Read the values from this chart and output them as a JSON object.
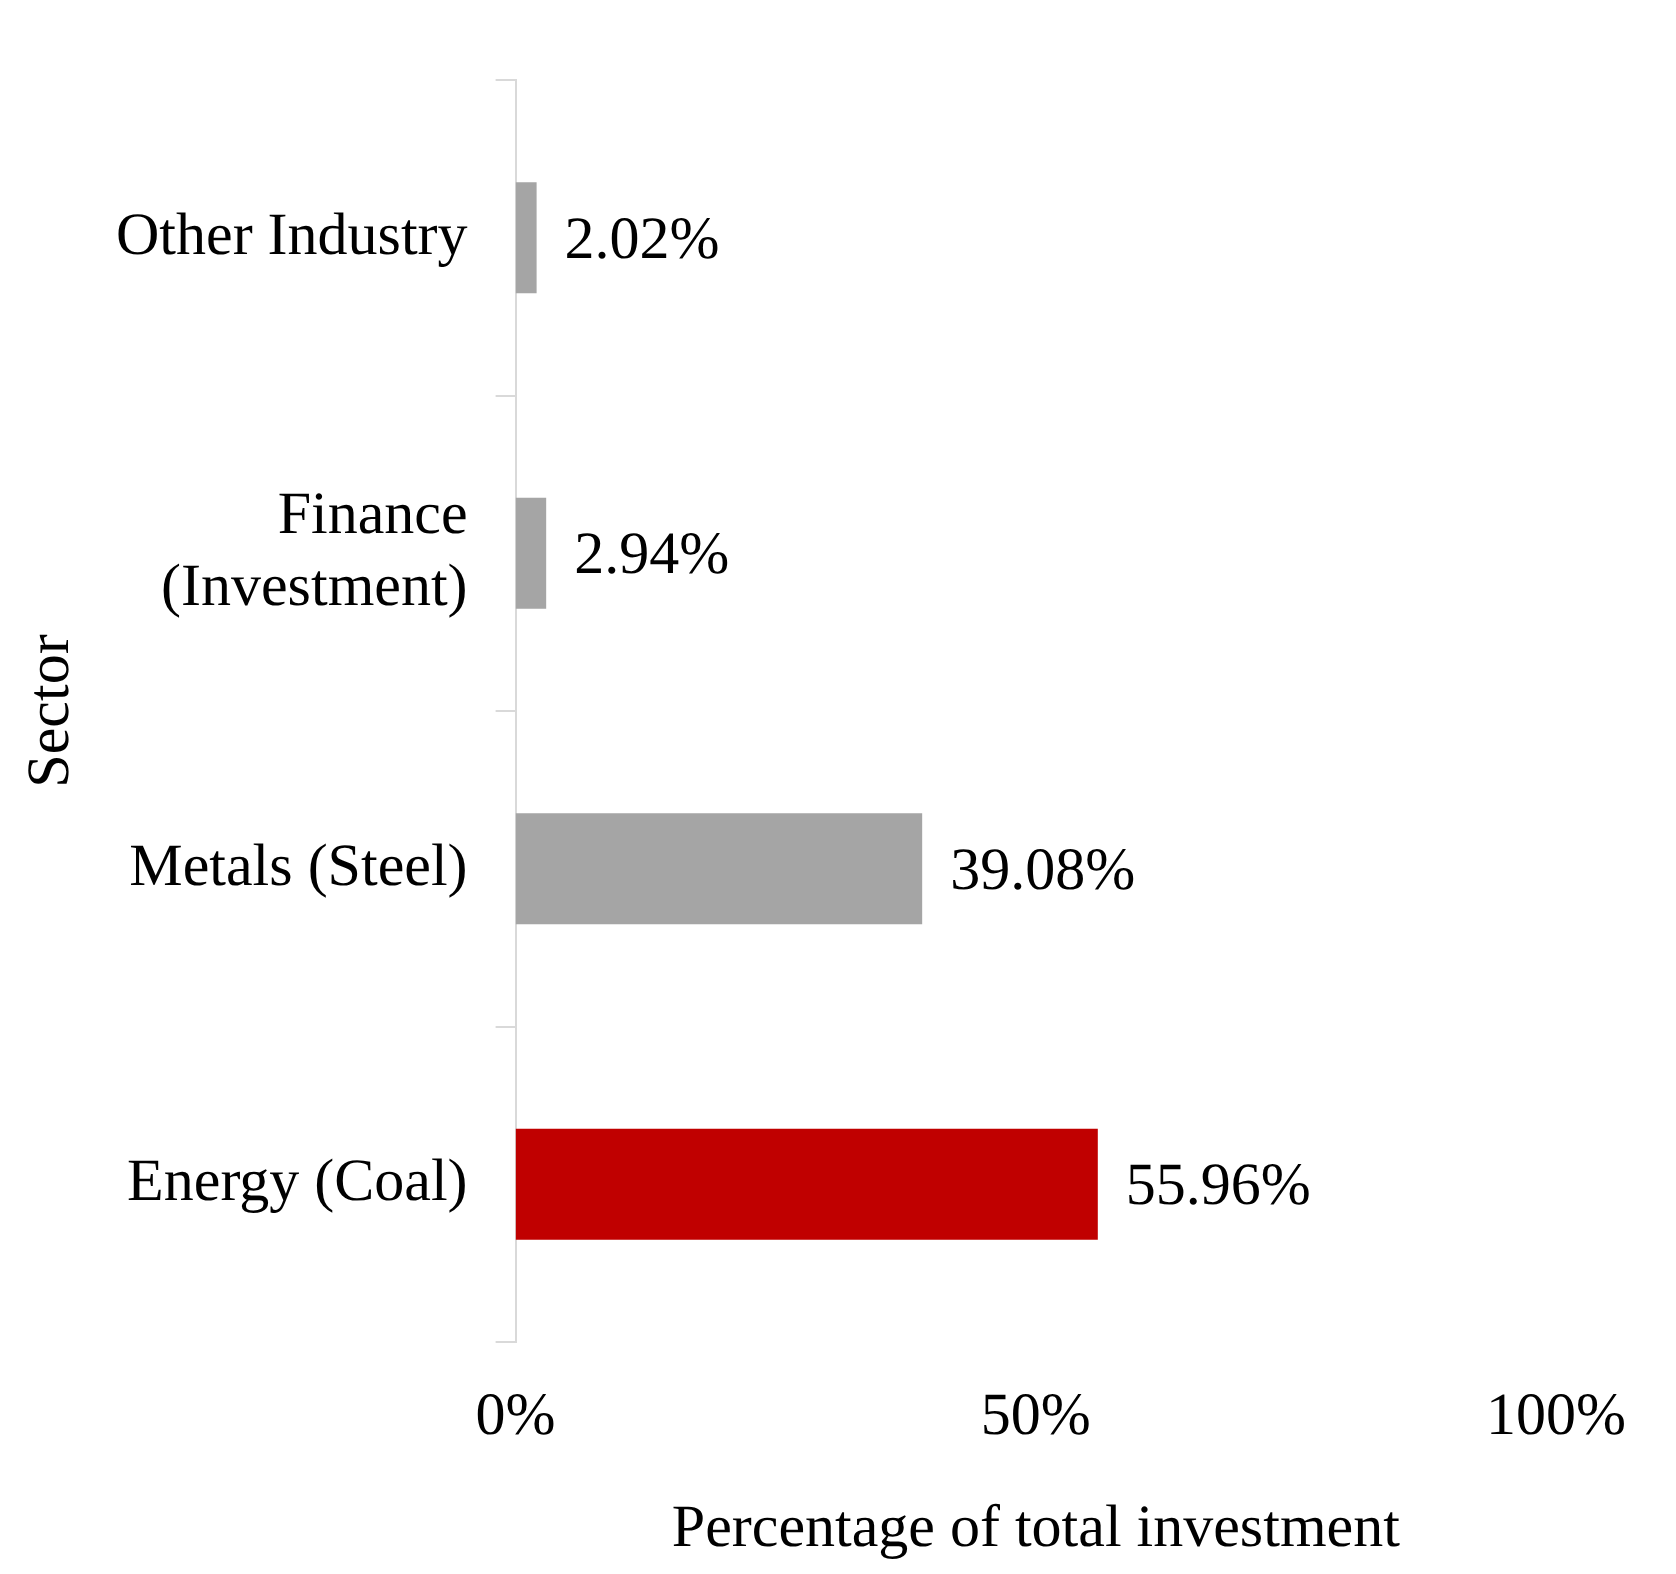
{
  "chart_data": {
    "type": "bar",
    "orientation": "horizontal",
    "xlabel": "Percentage of total investment",
    "ylabel": "Sector",
    "categories": [
      "Other Industry",
      "Finance (Investment)",
      "Metals (Steel)",
      "Energy (Coal)"
    ],
    "values": [
      2.02,
      2.94,
      39.08,
      55.96
    ],
    "colors": [
      "#a5a5a5",
      "#a5a5a5",
      "#a5a5a5",
      "#c00000"
    ],
    "value_labels": [
      "2.02%",
      "2.94%",
      "39.08%",
      "55.96%"
    ],
    "xlim": [
      0,
      100
    ],
    "xticks": [
      {
        "value": 0,
        "label": "0%"
      },
      {
        "value": 50,
        "label": "50%"
      },
      {
        "value": 100,
        "label": "100%"
      }
    ]
  }
}
